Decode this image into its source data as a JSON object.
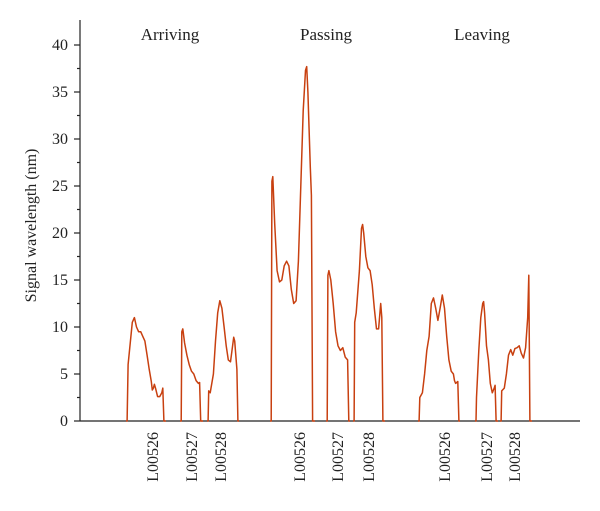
{
  "chart_data": {
    "type": "line",
    "ylabel": "Signal wavelength (nm)",
    "ylim": [
      0,
      42
    ],
    "yticks": [
      0,
      5,
      10,
      15,
      20,
      25,
      30,
      35,
      40
    ],
    "grid": false,
    "line_color": "#c84010",
    "groups": [
      {
        "name": "Arriving",
        "sensors": [
          {
            "label": "L00526",
            "points": [
              [
                0,
                0
              ],
              [
                0.5,
                0
              ],
              [
                1,
                6
              ],
              [
                3,
                10.5
              ],
              [
                4,
                11
              ],
              [
                5,
                10
              ],
              [
                6,
                9.5
              ],
              [
                7,
                9.5
              ],
              [
                8,
                9
              ],
              [
                9,
                8.5
              ],
              [
                10,
                7
              ],
              [
                11,
                5.5
              ],
              [
                12,
                4.2
              ],
              [
                12.5,
                3.3
              ],
              [
                13,
                3.5
              ],
              [
                13.5,
                3.9
              ],
              [
                14,
                3.5
              ],
              [
                15,
                2.6
              ],
              [
                16,
                2.6
              ],
              [
                17,
                3
              ],
              [
                17.5,
                3.5
              ],
              [
                18,
                0
              ],
              [
                19,
                0
              ]
            ]
          },
          {
            "label": "L00527",
            "points": [
              [
                0,
                0
              ],
              [
                0.5,
                0
              ],
              [
                0.8,
                9.5
              ],
              [
                1.2,
                9.8
              ],
              [
                2,
                8.3
              ],
              [
                3,
                7
              ],
              [
                4,
                6
              ],
              [
                5,
                5.3
              ],
              [
                6,
                5
              ],
              [
                7,
                4.3
              ],
              [
                8,
                4
              ],
              [
                8.5,
                4.1
              ],
              [
                9,
                0
              ],
              [
                10,
                0
              ]
            ]
          },
          {
            "label": "L00528",
            "points": [
              [
                0,
                0
              ],
              [
                0.5,
                0
              ],
              [
                0.8,
                3.2
              ],
              [
                1.5,
                3
              ],
              [
                3,
                5
              ],
              [
                4,
                8.5
              ],
              [
                5,
                11.5
              ],
              [
                6,
                12.8
              ],
              [
                7,
                12
              ],
              [
                8,
                10
              ],
              [
                9,
                8
              ],
              [
                10,
                6.5
              ],
              [
                11,
                6.3
              ],
              [
                12,
                8
              ],
              [
                12.5,
                8.9
              ],
              [
                13,
                8.5
              ],
              [
                14,
                5.5
              ],
              [
                14.5,
                0
              ],
              [
                15,
                0
              ]
            ]
          }
        ]
      },
      {
        "name": "Passing",
        "sensors": [
          {
            "label": "L00526",
            "points": [
              [
                0,
                0
              ],
              [
                0.5,
                0
              ],
              [
                0.8,
                25.5
              ],
              [
                1.2,
                26
              ],
              [
                2,
                21
              ],
              [
                3,
                16
              ],
              [
                4,
                14.8
              ],
              [
                5,
                15
              ],
              [
                6,
                16.5
              ],
              [
                7,
                17
              ],
              [
                8,
                16.5
              ],
              [
                9,
                14
              ],
              [
                10,
                12.5
              ],
              [
                11,
                12.8
              ],
              [
                12,
                17
              ],
              [
                13,
                25
              ],
              [
                14,
                33
              ],
              [
                15,
                37.3
              ],
              [
                15.5,
                37.7
              ],
              [
                16,
                35
              ],
              [
                17,
                27
              ],
              [
                17.5,
                24
              ],
              [
                18,
                0
              ],
              [
                19,
                0
              ]
            ]
          },
          {
            "label": "L00527",
            "points": [
              [
                0,
                0
              ],
              [
                0.5,
                0
              ],
              [
                0.8,
                15.5
              ],
              [
                1.2,
                16
              ],
              [
                2,
                15
              ],
              [
                3,
                12.5
              ],
              [
                4,
                9.5
              ],
              [
                5,
                8
              ],
              [
                6,
                7.5
              ],
              [
                7,
                7.8
              ],
              [
                8,
                6.8
              ],
              [
                9,
                6.5
              ],
              [
                9.5,
                0
              ],
              [
                10,
                0
              ]
            ]
          },
          {
            "label": "L00528",
            "points": [
              [
                0,
                0
              ],
              [
                0.5,
                0
              ],
              [
                0.8,
                10.5
              ],
              [
                1.5,
                11.5
              ],
              [
                3,
                16
              ],
              [
                4,
                20.5
              ],
              [
                4.5,
                20.9
              ],
              [
                5,
                20
              ],
              [
                6,
                17.5
              ],
              [
                7,
                16.3
              ],
              [
                8,
                16
              ],
              [
                9,
                14.5
              ],
              [
                10,
                12
              ],
              [
                11,
                9.8
              ],
              [
                12,
                9.8
              ],
              [
                13,
                12.5
              ],
              [
                13.5,
                11
              ],
              [
                14,
                0
              ],
              [
                15,
                0
              ]
            ]
          }
        ]
      },
      {
        "name": "Leaving",
        "sensors": [
          {
            "label": "L00526",
            "points": [
              [
                0,
                0
              ],
              [
                0.5,
                0
              ],
              [
                0.8,
                2.5
              ],
              [
                2,
                3
              ],
              [
                3,
                5
              ],
              [
                4,
                7.5
              ],
              [
                5,
                9
              ],
              [
                6,
                12.5
              ],
              [
                7,
                13.1
              ],
              [
                8,
                12
              ],
              [
                9,
                10.7
              ],
              [
                10,
                12
              ],
              [
                11,
                13.4
              ],
              [
                12,
                12
              ],
              [
                13,
                9
              ],
              [
                14,
                6.5
              ],
              [
                15,
                5.3
              ],
              [
                16,
                5
              ],
              [
                16.5,
                4.3
              ],
              [
                17,
                4
              ],
              [
                18,
                4.2
              ],
              [
                18.5,
                0
              ],
              [
                19,
                0
              ]
            ]
          },
          {
            "label": "L00527",
            "points": [
              [
                0,
                0
              ],
              [
                0.5,
                0
              ],
              [
                0.8,
                2.5
              ],
              [
                2,
                7.5
              ],
              [
                3,
                11
              ],
              [
                4,
                12.5
              ],
              [
                4.5,
                12.7
              ],
              [
                5,
                11.5
              ],
              [
                6,
                8
              ],
              [
                7,
                6.5
              ],
              [
                8,
                4
              ],
              [
                9,
                3
              ],
              [
                10,
                3.5
              ],
              [
                10.5,
                3.8
              ],
              [
                11,
                0
              ],
              [
                12,
                0
              ]
            ]
          },
          {
            "label": "L00528",
            "points": [
              [
                0,
                0
              ],
              [
                0.5,
                0
              ],
              [
                0.8,
                3.2
              ],
              [
                2,
                3.5
              ],
              [
                3,
                5
              ],
              [
                4,
                7
              ],
              [
                5,
                7.6
              ],
              [
                6,
                7
              ],
              [
                7,
                7.7
              ],
              [
                8,
                7.8
              ],
              [
                9,
                8
              ],
              [
                10,
                7.2
              ],
              [
                11,
                6.7
              ],
              [
                12,
                7.8
              ],
              [
                13,
                11
              ],
              [
                13.5,
                15.5
              ],
              [
                14,
                0
              ],
              [
                15,
                0
              ]
            ]
          }
        ]
      }
    ]
  }
}
